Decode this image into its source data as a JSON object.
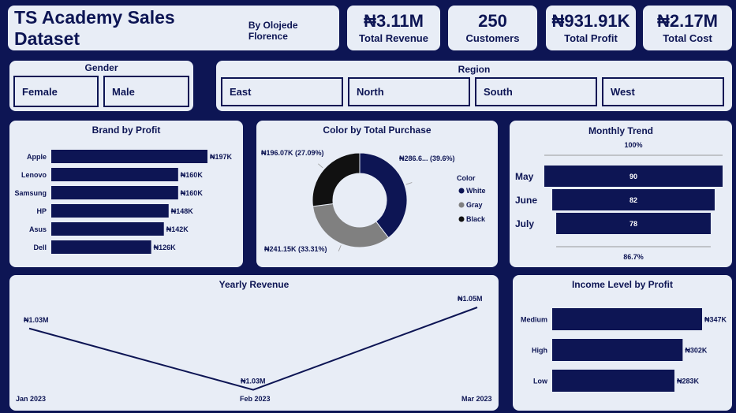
{
  "header": {
    "title": "TS Academy Sales Dataset",
    "subtitle": "By Olojede Florence"
  },
  "kpis": [
    {
      "value": "₦3.11M",
      "label": "Total Revenue"
    },
    {
      "value": "250",
      "label": "Customers"
    },
    {
      "value": "₦931.91K",
      "label": "Total Profit"
    },
    {
      "value": "₦2.17M",
      "label": "Total Cost"
    }
  ],
  "slicers": {
    "gender": {
      "title": "Gender",
      "options": [
        "Female",
        "Male"
      ]
    },
    "region": {
      "title": "Region",
      "options": [
        "East",
        "North",
        "South",
        "West"
      ]
    }
  },
  "chart_data": [
    {
      "type": "bar",
      "orientation": "horizontal",
      "title": "Brand by Profit",
      "categories": [
        "Apple",
        "Lenovo",
        "Samsung",
        "HP",
        "Asus",
        "Dell"
      ],
      "values": [
        197,
        160,
        160,
        148,
        142,
        126
      ],
      "labels": [
        "₦197K",
        "₦160K",
        "₦160K",
        "₦148K",
        "₦142K",
        "₦126K"
      ],
      "unit": "K",
      "color": "#0d1554"
    },
    {
      "type": "pie",
      "variant": "donut",
      "title": "Color by Total Purchase",
      "legend_title": "Color",
      "legend_position": "right",
      "categories": [
        "White",
        "Gray",
        "Black"
      ],
      "values": [
        286.6,
        241.15,
        196.07
      ],
      "percents": [
        39.6,
        33.31,
        27.09
      ],
      "labels": [
        "₦286.6... (39.6%)",
        "₦241.15K (33.31%)",
        "₦196.07K (27.09%)"
      ],
      "colors": [
        "#0d1554",
        "#808080",
        "#111111"
      ]
    },
    {
      "type": "bar",
      "variant": "funnel",
      "title": "Monthly Trend",
      "categories": [
        "May",
        "June",
        "July"
      ],
      "values": [
        90,
        82,
        78
      ],
      "top_label": "100%",
      "bottom_label": "86.7%",
      "color": "#0d1554"
    },
    {
      "type": "line",
      "title": "Yearly Revenue",
      "x": [
        "Jan 2023",
        "Feb 2023",
        "Mar 2023"
      ],
      "values": [
        1.03,
        1.03,
        1.05
      ],
      "labels": [
        "₦1.03M",
        "₦1.03M",
        "₦1.05M"
      ],
      "display_ylim": [
        1.028,
        1.05
      ],
      "color": "#0d1554"
    },
    {
      "type": "bar",
      "orientation": "horizontal",
      "title": "Income Level by Profit",
      "categories": [
        "Medium",
        "High",
        "Low"
      ],
      "values": [
        347,
        302,
        283
      ],
      "labels": [
        "₦347K",
        "₦302K",
        "₦283K"
      ],
      "unit": "K",
      "color": "#0d1554"
    }
  ]
}
